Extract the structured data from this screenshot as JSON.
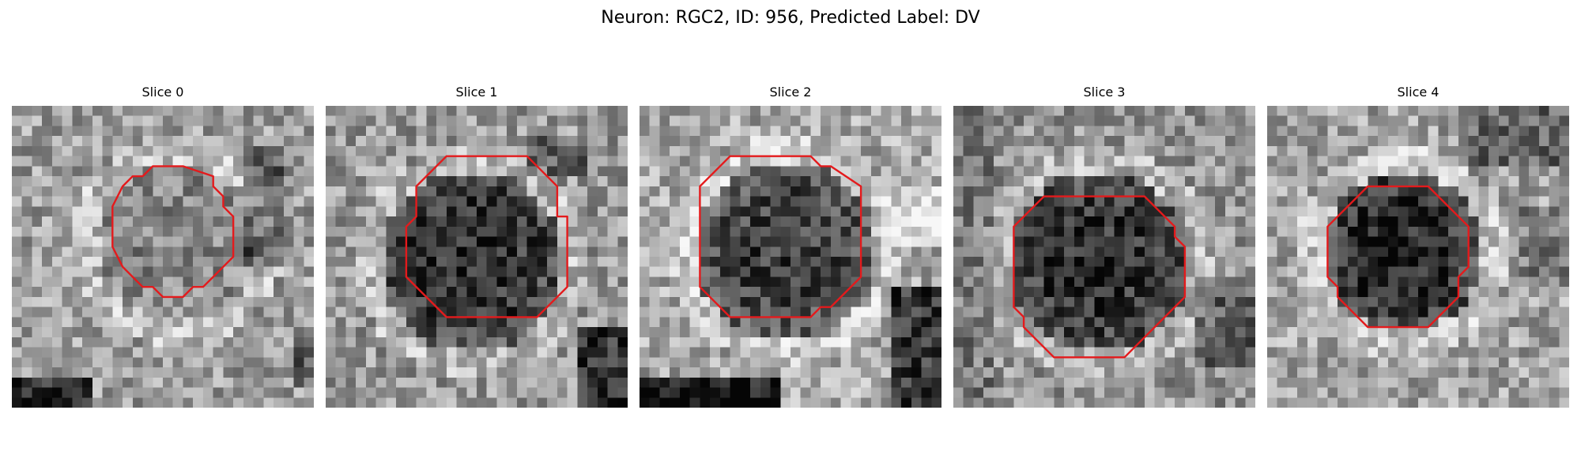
{
  "figure": {
    "title": "Neuron: RGC2, ID: 956, Predicted Label: DV"
  },
  "contour_color": "#e41a1c",
  "grid_size": 30,
  "panels": [
    {
      "title": "Slice 0",
      "cell_center": [
        16,
        13
      ],
      "cell_radius": 8,
      "cell_depth": 0.1,
      "seed": 11,
      "base": 0.62,
      "dark_zones": [
        [
          0,
          27,
          8,
          3,
          0.45
        ],
        [
          23,
          4,
          4,
          12,
          0.25
        ],
        [
          28,
          22,
          3,
          6,
          0.25
        ]
      ],
      "contour": [
        [
          14,
          6
        ],
        [
          17,
          6
        ],
        [
          20,
          7
        ],
        [
          20,
          8
        ],
        [
          21,
          9
        ],
        [
          21,
          10
        ],
        [
          22,
          11
        ],
        [
          22,
          15
        ],
        [
          21,
          16
        ],
        [
          20,
          17
        ],
        [
          19,
          18
        ],
        [
          18,
          18
        ],
        [
          17,
          19
        ],
        [
          15,
          19
        ],
        [
          14,
          18
        ],
        [
          13,
          18
        ],
        [
          12,
          17
        ],
        [
          11,
          16
        ],
        [
          10,
          14
        ],
        [
          10,
          10
        ],
        [
          11,
          8
        ],
        [
          12,
          7
        ],
        [
          13,
          7
        ]
      ]
    },
    {
      "title": "Slice 1",
      "cell_center": [
        14,
        15
      ],
      "cell_radius": 9,
      "cell_depth": 0.42,
      "seed": 23,
      "base": 0.6,
      "dark_zones": [
        [
          25,
          22,
          5,
          8,
          0.4
        ],
        [
          20,
          3,
          6,
          4,
          0.2
        ]
      ],
      "contour": [
        [
          12,
          5
        ],
        [
          20,
          5
        ],
        [
          23,
          8
        ],
        [
          23,
          11
        ],
        [
          24,
          11
        ],
        [
          24,
          18
        ],
        [
          21,
          21
        ],
        [
          12,
          21
        ],
        [
          8,
          17
        ],
        [
          8,
          12
        ],
        [
          9,
          11
        ],
        [
          9,
          8
        ]
      ]
    },
    {
      "title": "Slice 2",
      "cell_center": [
        14,
        14
      ],
      "cell_radius": 9,
      "cell_depth": 0.42,
      "seed": 37,
      "base": 0.66,
      "dark_zones": [
        [
          0,
          27,
          14,
          3,
          0.55
        ],
        [
          25,
          18,
          5,
          12,
          0.45
        ],
        [
          24,
          8,
          6,
          6,
          -0.2
        ]
      ],
      "contour": [
        [
          9,
          5
        ],
        [
          17,
          5
        ],
        [
          18,
          6
        ],
        [
          19,
          6
        ],
        [
          22,
          8
        ],
        [
          22,
          17
        ],
        [
          19,
          20
        ],
        [
          18,
          20
        ],
        [
          17,
          21
        ],
        [
          9,
          21
        ],
        [
          6,
          18
        ],
        [
          6,
          8
        ]
      ]
    },
    {
      "title": "Slice 3",
      "cell_center": [
        14,
        15
      ],
      "cell_radius": 9,
      "cell_depth": 0.4,
      "seed": 53,
      "base": 0.58,
      "dark_zones": [
        [
          24,
          18,
          6,
          8,
          0.2
        ],
        [
          0,
          0,
          4,
          30,
          0.1
        ]
      ],
      "contour": [
        [
          9,
          9
        ],
        [
          19,
          9
        ],
        [
          22,
          12
        ],
        [
          22,
          13
        ],
        [
          23,
          14
        ],
        [
          23,
          19
        ],
        [
          17,
          25
        ],
        [
          10,
          25
        ],
        [
          7,
          22
        ],
        [
          7,
          21
        ],
        [
          6,
          20
        ],
        [
          6,
          12
        ]
      ]
    },
    {
      "title": "Slice 4",
      "cell_center": [
        13,
        14
      ],
      "cell_radius": 8,
      "cell_depth": 0.5,
      "seed": 71,
      "base": 0.64,
      "dark_zones": [
        [
          19,
          0,
          11,
          6,
          0.25
        ],
        [
          25,
          10,
          5,
          8,
          0.15
        ]
      ],
      "contour": [
        [
          10,
          8
        ],
        [
          16,
          8
        ],
        [
          20,
          12
        ],
        [
          20,
          16
        ],
        [
          19,
          17
        ],
        [
          19,
          19
        ],
        [
          16,
          22
        ],
        [
          10,
          22
        ],
        [
          7,
          19
        ],
        [
          7,
          18
        ],
        [
          6,
          17
        ],
        [
          6,
          12
        ]
      ]
    }
  ]
}
